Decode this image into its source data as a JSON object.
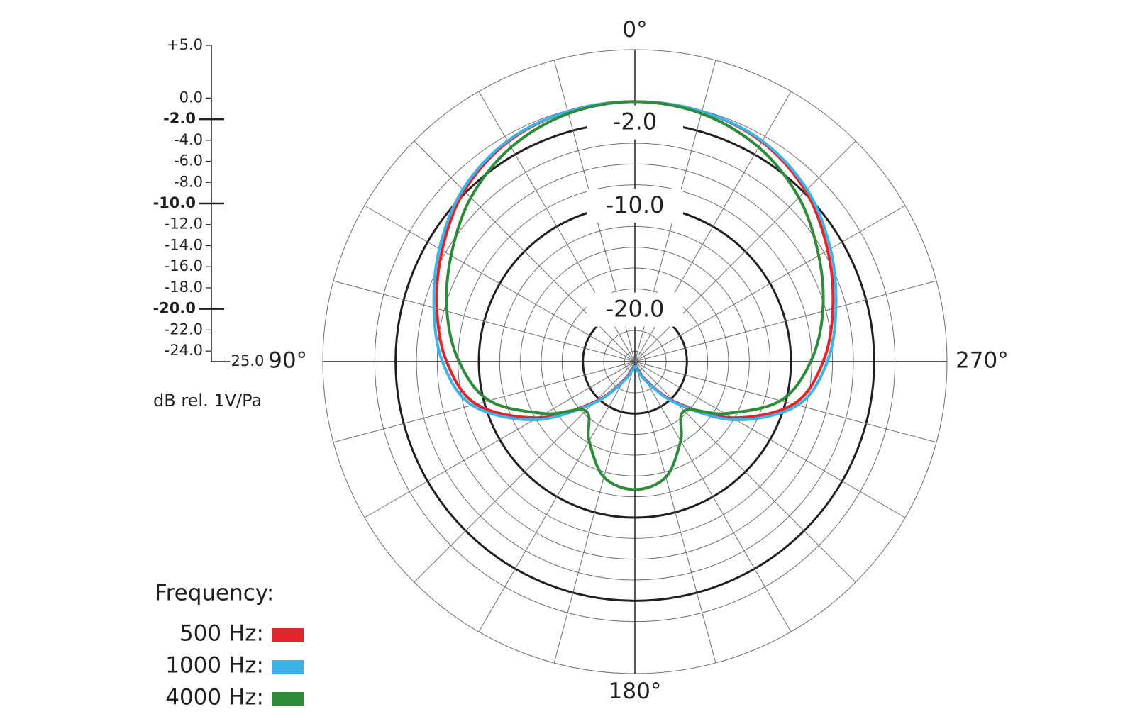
{
  "chart_data": {
    "type": "polar",
    "x": [
      0,
      15,
      30,
      45,
      60,
      75,
      90,
      105,
      120,
      135,
      150,
      165,
      180,
      195,
      210,
      225,
      240,
      255,
      270,
      285,
      300,
      315,
      330,
      345
    ],
    "series": [
      {
        "name": "500 Hz:",
        "color": "#e3242b",
        "values": [
          0,
          -0.1,
          -0.6,
          -1.8,
          -3.6,
          -5.3,
          -6.9,
          -9.2,
          -14.2,
          -19.5,
          -23,
          -24.3,
          -24.5,
          -24.3,
          -23,
          -19.5,
          -14.2,
          -9.2,
          -6.9,
          -5.3,
          -3.6,
          -1.8,
          -0.6,
          -0.1
        ]
      },
      {
        "name": "1000 Hz:",
        "color": "#3ab4e8",
        "values": [
          0,
          -0.1,
          -0.5,
          -1.6,
          -3.3,
          -5,
          -6.5,
          -8.8,
          -13.8,
          -19.3,
          -22.8,
          -24.2,
          -24.5,
          -24.2,
          -22.8,
          -19.3,
          -13.8,
          -8.8,
          -6.5,
          -5,
          -3.3,
          -1.6,
          -0.5,
          -0.1
        ]
      },
      {
        "name": "4000 Hz:",
        "color": "#2e8b3a",
        "values": [
          0,
          -0.3,
          -1.2,
          -2.7,
          -4.6,
          -6.3,
          -8.1,
          -10.5,
          -15,
          -18.3,
          -16.2,
          -13.5,
          -12.7,
          -13.5,
          -16.2,
          -18.3,
          -15,
          -10.5,
          -8.1,
          -6.3,
          -4.6,
          -2.7,
          -1.2,
          -0.3
        ]
      }
    ],
    "ylim": [
      -25,
      5
    ],
    "yticks": [
      {
        "value": 5,
        "label": "+5.0"
      },
      {
        "value": 0,
        "label": "0.0"
      },
      {
        "value": -2,
        "label": "-2.0"
      },
      {
        "value": -4,
        "label": "-4.0"
      },
      {
        "value": -6,
        "label": "-6.0"
      },
      {
        "value": -8,
        "label": "-8.0"
      },
      {
        "value": -10,
        "label": "-10.0"
      },
      {
        "value": -12,
        "label": "-12.0"
      },
      {
        "value": -14,
        "label": "-14.0"
      },
      {
        "value": -16,
        "label": "-16.0"
      },
      {
        "value": -18,
        "label": "-18.0"
      },
      {
        "value": -20,
        "label": "-20.0"
      },
      {
        "value": -22,
        "label": "-22.0"
      },
      {
        "value": -24,
        "label": "-24.0"
      },
      {
        "value": -25,
        "label": "-25.0"
      }
    ],
    "ring_labels": [
      {
        "value": -2,
        "label": "-2.0"
      },
      {
        "value": -10,
        "label": "-10.0"
      },
      {
        "value": -20,
        "label": "-20.0"
      }
    ],
    "xticks": [
      {
        "value": 0,
        "label": "0°"
      },
      {
        "value": 90,
        "label": "90°"
      },
      {
        "value": 180,
        "label": "180°"
      },
      {
        "value": 270,
        "label": "270°"
      }
    ],
    "theta_grid_step": 15,
    "y_axis_label": "dB rel. 1V/Pa",
    "legend_title": "Frequency:",
    "legend": "bottom-left"
  }
}
